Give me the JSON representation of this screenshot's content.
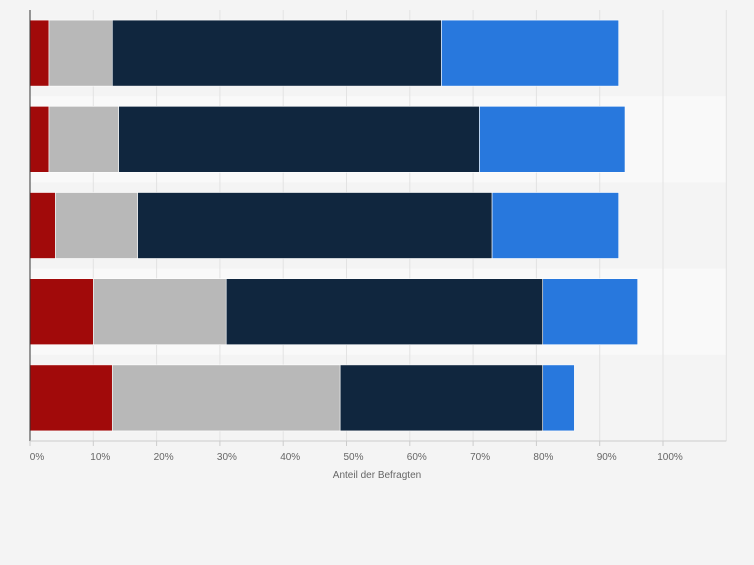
{
  "chart_data": {
    "type": "bar",
    "orientation": "horizontal",
    "stacked": true,
    "categories": [
      "",
      "",
      "",
      "",
      ""
    ],
    "series": [
      {
        "color": "#a10a0a",
        "values": [
          3,
          3,
          4,
          10,
          13
        ]
      },
      {
        "color": "#b8b8b8",
        "values": [
          10,
          11,
          13,
          21,
          36
        ]
      },
      {
        "color": "#10263e",
        "values": [
          52,
          57,
          56,
          50,
          32
        ]
      },
      {
        "color": "#2878dd",
        "values": [
          28,
          23,
          20,
          15,
          5
        ]
      }
    ],
    "xlim": [
      0,
      110
    ],
    "xticks": [
      "0%",
      "10%",
      "20%",
      "30%",
      "40%",
      "50%",
      "60%",
      "70%",
      "80%",
      "90%",
      "100%"
    ],
    "xtick_values": [
      0,
      10,
      20,
      30,
      40,
      50,
      60,
      70,
      80,
      90,
      100
    ],
    "xlabel": "Anteil der Befragten",
    "ylabel": "",
    "title": "",
    "grid": true,
    "legend": "none"
  }
}
